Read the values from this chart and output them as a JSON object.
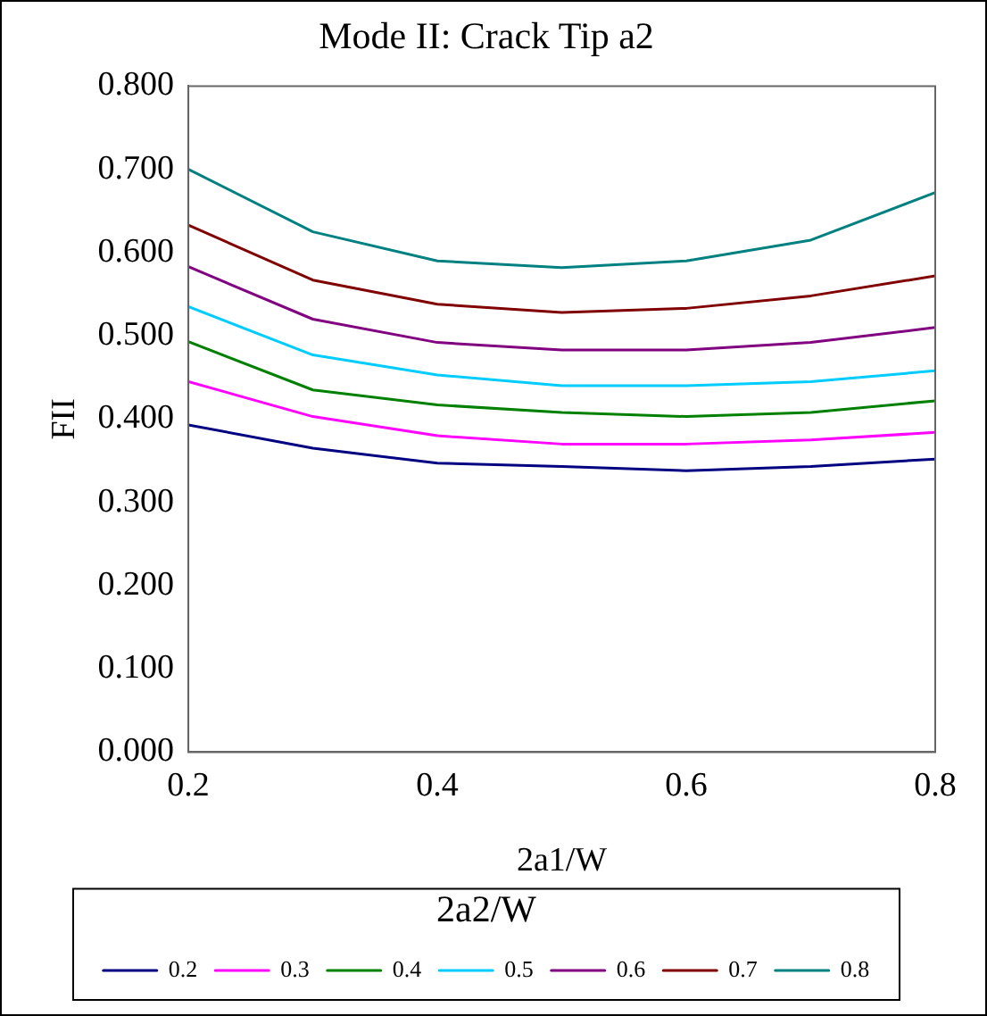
{
  "chart_data": {
    "type": "line",
    "title": "Mode II: Crack Tip a2",
    "xlabel": "2a1/W",
    "ylabel": "FII",
    "legend_title": "2a2/W",
    "x": [
      0.2,
      0.3,
      0.4,
      0.5,
      0.6,
      0.7,
      0.8
    ],
    "series": [
      {
        "name": "0.2",
        "color": "#000080",
        "values": [
          0.393,
          0.365,
          0.347,
          0.343,
          0.338,
          0.343,
          0.352
        ]
      },
      {
        "name": "0.3",
        "color": "#ff00ff",
        "values": [
          0.445,
          0.403,
          0.38,
          0.37,
          0.37,
          0.375,
          0.384
        ]
      },
      {
        "name": "0.4",
        "color": "#008000",
        "values": [
          0.493,
          0.435,
          0.417,
          0.408,
          0.403,
          0.408,
          0.422
        ]
      },
      {
        "name": "0.5",
        "color": "#00ccff",
        "values": [
          0.535,
          0.477,
          0.453,
          0.44,
          0.44,
          0.445,
          0.458
        ]
      },
      {
        "name": "0.6",
        "color": "#800080",
        "values": [
          0.583,
          0.52,
          0.492,
          0.483,
          0.483,
          0.492,
          0.51
        ]
      },
      {
        "name": "0.7",
        "color": "#800000",
        "values": [
          0.633,
          0.567,
          0.538,
          0.528,
          0.533,
          0.548,
          0.572
        ]
      },
      {
        "name": "0.8",
        "color": "#008080",
        "values": [
          0.7,
          0.625,
          0.59,
          0.582,
          0.59,
          0.615,
          0.672
        ]
      }
    ],
    "xlim": [
      0.2,
      0.8
    ],
    "xticks": [
      0.2,
      0.4,
      0.6,
      0.8
    ],
    "ylim": [
      0,
      0.8
    ],
    "yticks": [
      {
        "value": 0,
        "label": "0.000"
      },
      {
        "value": 0.1,
        "label": "0.100"
      },
      {
        "value": 0.2,
        "label": "0.200"
      },
      {
        "value": 0.3,
        "label": "0.300"
      },
      {
        "value": 0.4,
        "label": "0.400"
      },
      {
        "value": 0.5,
        "label": "0.500"
      },
      {
        "value": 0.6,
        "label": "0.600"
      },
      {
        "value": 0.7,
        "label": "0.700"
      },
      {
        "value": 0.8,
        "label": "0.800"
      }
    ],
    "grid": false,
    "legend": "bottom",
    "marker": "none",
    "line_style": "solid"
  }
}
